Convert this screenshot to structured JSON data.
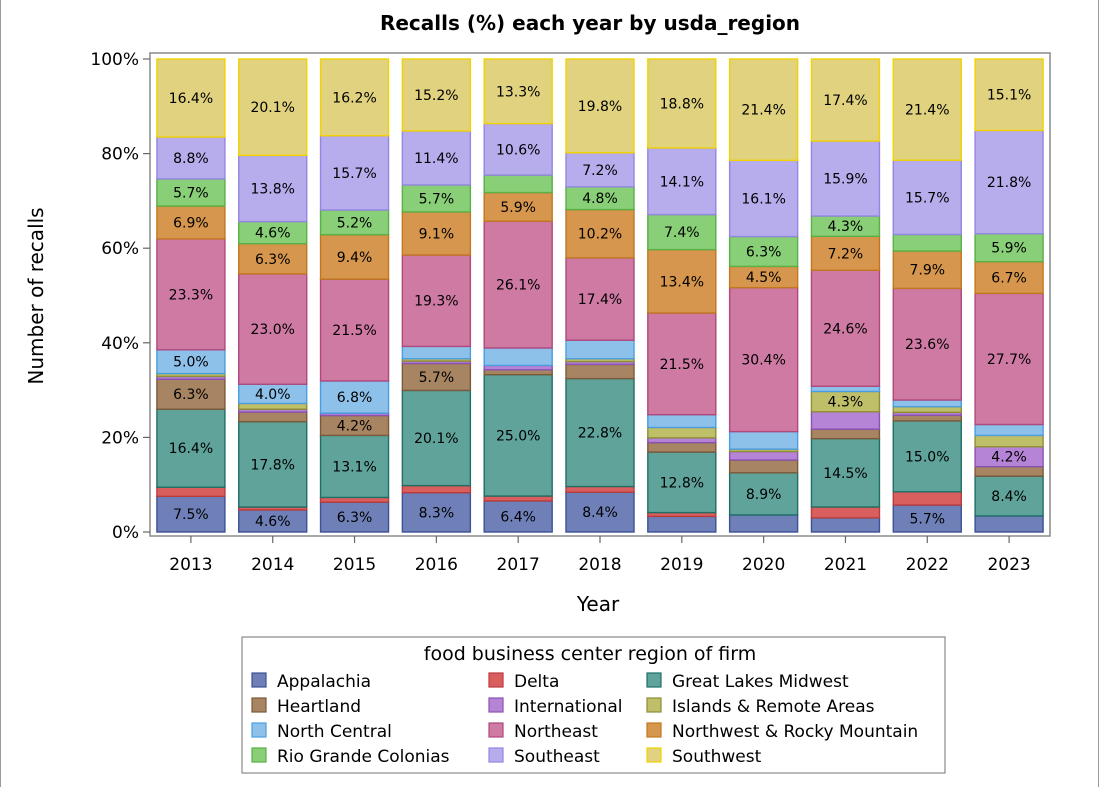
{
  "chart_data": {
    "type": "bar",
    "stacked": true,
    "title": "Recalls (%) each year by usda_region",
    "xlabel": "Year",
    "ylabel": "Number of recalls",
    "ylim": [
      0,
      100
    ],
    "y_ticks": [
      "0%",
      "20%",
      "40%",
      "60%",
      "80%",
      "100%"
    ],
    "categories": [
      "2013",
      "2014",
      "2015",
      "2016",
      "2017",
      "2018",
      "2019",
      "2020",
      "2021",
      "2022",
      "2023"
    ],
    "legend_title": "food business center region of firm",
    "legend_position": "bottom",
    "series": [
      {
        "name": "Appalachia",
        "color": "#6f80b8",
        "edge": "#3c5196",
        "values": [
          7.5,
          4.6,
          6.3,
          8.3,
          6.4,
          8.4,
          3.3,
          3.6,
          3.0,
          5.7,
          3.4
        ]
      },
      {
        "name": "Delta",
        "color": "#d95f5f",
        "edge": "#b83c3c",
        "values": [
          1.9,
          0.6,
          1.0,
          1.5,
          1.0,
          1.2,
          0.8,
          0.0,
          2.3,
          2.8,
          0.0
        ]
      },
      {
        "name": "Great Lakes Midwest",
        "color": "#5fa39b",
        "edge": "#1f6f66",
        "values": [
          16.4,
          17.8,
          13.1,
          20.1,
          25.0,
          22.8,
          12.8,
          8.9,
          14.5,
          15.0,
          8.4
        ]
      },
      {
        "name": "Heartland",
        "color": "#a78462",
        "edge": "#7a5a3a",
        "values": [
          6.3,
          2.0,
          4.2,
          5.7,
          1.0,
          3.0,
          2.0,
          2.7,
          2.0,
          1.2,
          2.0
        ]
      },
      {
        "name": "International",
        "color": "#b684d6",
        "edge": "#8a52b3",
        "values": [
          0.6,
          0.6,
          0.5,
          0.5,
          0.9,
          0.6,
          1.0,
          1.8,
          3.7,
          0.6,
          4.2
        ]
      },
      {
        "name": "Islands & Remote Areas",
        "color": "#bfbf6a",
        "edge": "#8e8e35",
        "values": [
          0.6,
          1.2,
          0.0,
          0.5,
          0.0,
          0.6,
          2.2,
          0.5,
          4.3,
          1.2,
          2.4
        ]
      },
      {
        "name": "North Central",
        "color": "#8ec1ea",
        "edge": "#4a9de0",
        "values": [
          5.0,
          4.0,
          6.8,
          2.6,
          3.6,
          3.9,
          2.7,
          3.7,
          1.1,
          1.4,
          2.3
        ]
      },
      {
        "name": "Northeast",
        "color": "#cf7aa3",
        "edge": "#b0487c",
        "values": [
          23.3,
          23.0,
          21.5,
          19.3,
          26.1,
          17.4,
          21.5,
          30.4,
          24.6,
          23.6,
          27.7
        ]
      },
      {
        "name": "Northwest & Rocky Mountain",
        "color": "#d6964d",
        "edge": "#c2771f",
        "values": [
          6.9,
          6.3,
          9.4,
          9.1,
          5.9,
          10.2,
          13.4,
          4.5,
          7.2,
          7.9,
          6.7
        ]
      },
      {
        "name": "Rio Grande Colonias",
        "color": "#88cf77",
        "edge": "#58b046",
        "values": [
          5.7,
          4.6,
          5.2,
          5.7,
          3.6,
          4.8,
          7.4,
          6.3,
          4.3,
          3.5,
          5.9
        ]
      },
      {
        "name": "Southeast",
        "color": "#b7acec",
        "edge": "#9486e3",
        "values": [
          8.8,
          13.8,
          15.7,
          11.4,
          10.6,
          7.2,
          14.1,
          16.1,
          15.9,
          15.7,
          21.8
        ]
      },
      {
        "name": "Southwest",
        "color": "#e0d27e",
        "edge": "#f2d300",
        "values": [
          16.4,
          20.1,
          16.2,
          15.2,
          13.3,
          19.8,
          18.8,
          21.4,
          17.4,
          21.4,
          15.1
        ]
      }
    ],
    "data_labels": [
      {
        "year": "2013",
        "series": "Appalachia",
        "text": "7.5%"
      },
      {
        "year": "2013",
        "series": "Great Lakes Midwest",
        "text": "16.4%"
      },
      {
        "year": "2013",
        "series": "Heartland",
        "text": "6.3%"
      },
      {
        "year": "2013",
        "series": "North Central",
        "text": "5.0%"
      },
      {
        "year": "2013",
        "series": "Northeast",
        "text": "23.3%"
      },
      {
        "year": "2013",
        "series": "Northwest & Rocky Mountain",
        "text": "6.9%"
      },
      {
        "year": "2013",
        "series": "Rio Grande Colonias",
        "text": "5.7%"
      },
      {
        "year": "2013",
        "series": "Southeast",
        "text": "8.8%"
      },
      {
        "year": "2013",
        "series": "Southwest",
        "text": "16.4%"
      },
      {
        "year": "2014",
        "series": "Appalachia",
        "text": "4.6%"
      },
      {
        "year": "2014",
        "series": "Great Lakes Midwest",
        "text": "17.8%"
      },
      {
        "year": "2014",
        "series": "North Central",
        "text": "4.0%"
      },
      {
        "year": "2014",
        "series": "Northeast",
        "text": "23.0%"
      },
      {
        "year": "2014",
        "series": "Northwest & Rocky Mountain",
        "text": "6.3%"
      },
      {
        "year": "2014",
        "series": "Rio Grande Colonias",
        "text": "4.6%"
      },
      {
        "year": "2014",
        "series": "Southeast",
        "text": "13.8%"
      },
      {
        "year": "2014",
        "series": "Southwest",
        "text": "20.1%"
      },
      {
        "year": "2015",
        "series": "Appalachia",
        "text": "6.3%"
      },
      {
        "year": "2015",
        "series": "Great Lakes Midwest",
        "text": "13.1%"
      },
      {
        "year": "2015",
        "series": "Heartland",
        "text": "4.2%"
      },
      {
        "year": "2015",
        "series": "North Central",
        "text": "6.8%"
      },
      {
        "year": "2015",
        "series": "Northeast",
        "text": "21.5%"
      },
      {
        "year": "2015",
        "series": "Northwest & Rocky Mountain",
        "text": "9.4%"
      },
      {
        "year": "2015",
        "series": "Rio Grande Colonias",
        "text": "5.2%"
      },
      {
        "year": "2015",
        "series": "Southeast",
        "text": "15.7%"
      },
      {
        "year": "2015",
        "series": "Southwest",
        "text": "16.2%"
      },
      {
        "year": "2016",
        "series": "Appalachia",
        "text": "8.3%"
      },
      {
        "year": "2016",
        "series": "Great Lakes Midwest",
        "text": "20.1%"
      },
      {
        "year": "2016",
        "series": "Heartland",
        "text": "5.7%"
      },
      {
        "year": "2016",
        "series": "Northeast",
        "text": "19.3%"
      },
      {
        "year": "2016",
        "series": "Northwest & Rocky Mountain",
        "text": "9.1%"
      },
      {
        "year": "2016",
        "series": "Rio Grande Colonias",
        "text": "5.7%"
      },
      {
        "year": "2016",
        "series": "Southeast",
        "text": "11.4%"
      },
      {
        "year": "2016",
        "series": "Southwest",
        "text": "15.2%"
      },
      {
        "year": "2017",
        "series": "Appalachia",
        "text": "6.4%"
      },
      {
        "year": "2017",
        "series": "Great Lakes Midwest",
        "text": "25.0%"
      },
      {
        "year": "2017",
        "series": "Northeast",
        "text": "26.1%"
      },
      {
        "year": "2017",
        "series": "Northwest & Rocky Mountain",
        "text": "5.9%"
      },
      {
        "year": "2017",
        "series": "Southeast",
        "text": "10.6%"
      },
      {
        "year": "2017",
        "series": "Southwest",
        "text": "13.3%"
      },
      {
        "year": "2018",
        "series": "Appalachia",
        "text": "8.4%"
      },
      {
        "year": "2018",
        "series": "Great Lakes Midwest",
        "text": "22.8%"
      },
      {
        "year": "2018",
        "series": "Northeast",
        "text": "17.4%"
      },
      {
        "year": "2018",
        "series": "Northwest & Rocky Mountain",
        "text": "10.2%"
      },
      {
        "year": "2018",
        "series": "Rio Grande Colonias",
        "text": "4.8%"
      },
      {
        "year": "2018",
        "series": "Southeast",
        "text": "7.2%"
      },
      {
        "year": "2018",
        "series": "Southwest",
        "text": "19.8%"
      },
      {
        "year": "2019",
        "series": "Great Lakes Midwest",
        "text": "12.8%"
      },
      {
        "year": "2019",
        "series": "Northeast",
        "text": "21.5%"
      },
      {
        "year": "2019",
        "series": "Northwest & Rocky Mountain",
        "text": "13.4%"
      },
      {
        "year": "2019",
        "series": "Rio Grande Colonias",
        "text": "7.4%"
      },
      {
        "year": "2019",
        "series": "Southeast",
        "text": "14.1%"
      },
      {
        "year": "2019",
        "series": "Southwest",
        "text": "18.8%"
      },
      {
        "year": "2020",
        "series": "Great Lakes Midwest",
        "text": "8.9%"
      },
      {
        "year": "2020",
        "series": "Northeast",
        "text": "30.4%"
      },
      {
        "year": "2020",
        "series": "Northwest & Rocky Mountain",
        "text": "4.5%"
      },
      {
        "year": "2020",
        "series": "Rio Grande Colonias",
        "text": "6.3%"
      },
      {
        "year": "2020",
        "series": "Southeast",
        "text": "16.1%"
      },
      {
        "year": "2020",
        "series": "Southwest",
        "text": "21.4%"
      },
      {
        "year": "2021",
        "series": "Great Lakes Midwest",
        "text": "14.5%"
      },
      {
        "year": "2021",
        "series": "Islands & Remote Areas",
        "text": "4.3%"
      },
      {
        "year": "2021",
        "series": "Northeast",
        "text": "24.6%"
      },
      {
        "year": "2021",
        "series": "Northwest & Rocky Mountain",
        "text": "7.2%"
      },
      {
        "year": "2021",
        "series": "Rio Grande Colonias",
        "text": "4.3%"
      },
      {
        "year": "2021",
        "series": "Southeast",
        "text": "15.9%"
      },
      {
        "year": "2021",
        "series": "Southwest",
        "text": "17.4%"
      },
      {
        "year": "2022",
        "series": "Appalachia",
        "text": "5.7%"
      },
      {
        "year": "2022",
        "series": "Great Lakes Midwest",
        "text": "15.0%"
      },
      {
        "year": "2022",
        "series": "Northeast",
        "text": "23.6%"
      },
      {
        "year": "2022",
        "series": "Northwest & Rocky Mountain",
        "text": "7.9%"
      },
      {
        "year": "2022",
        "series": "Southeast",
        "text": "15.7%"
      },
      {
        "year": "2022",
        "series": "Southwest",
        "text": "21.4%"
      },
      {
        "year": "2023",
        "series": "Great Lakes Midwest",
        "text": "8.4%"
      },
      {
        "year": "2023",
        "series": "International",
        "text": "4.2%"
      },
      {
        "year": "2023",
        "series": "Northeast",
        "text": "27.7%"
      },
      {
        "year": "2023",
        "series": "Northwest & Rocky Mountain",
        "text": "6.7%"
      },
      {
        "year": "2023",
        "series": "Rio Grande Colonias",
        "text": "5.9%"
      },
      {
        "year": "2023",
        "series": "Southeast",
        "text": "21.8%"
      },
      {
        "year": "2023",
        "series": "Southwest",
        "text": "15.1%"
      }
    ]
  }
}
